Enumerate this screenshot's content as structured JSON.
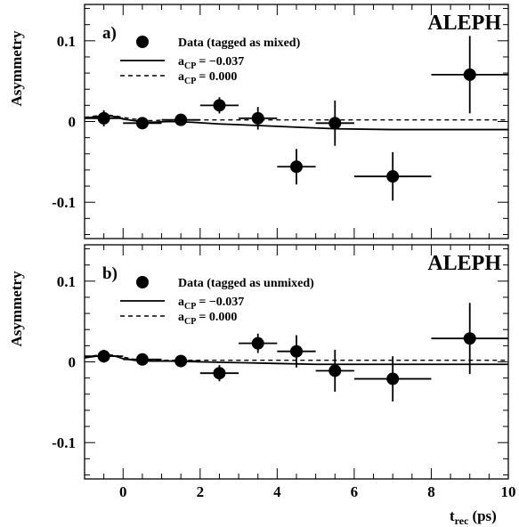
{
  "chart_data": [
    {
      "type": "scatter",
      "panel_label": "a)",
      "experiment": "ALEPH",
      "xlabel": "",
      "ylabel": "Asymmetry",
      "xlim": [
        -1,
        10
      ],
      "ylim": [
        -0.145,
        0.145
      ],
      "x_ticks": [
        "0",
        "2",
        "4",
        "6",
        "8",
        "10"
      ],
      "y_ticks": [
        "0.1",
        "0",
        "-0.1"
      ],
      "legend": [
        {
          "label": "Data (tagged as mixed)",
          "marker": "filled-circle"
        },
        {
          "label_main": "a",
          "label_sub": "CP",
          "label_value": "= −0.037",
          "style": "solid"
        },
        {
          "label_main": "a",
          "label_sub": "CP",
          "label_value": "=   0.000",
          "style": "dashed"
        }
      ],
      "series": [
        {
          "name": "Data (tagged as mixed)",
          "points": [
            {
              "x": -0.5,
              "xerr": 0.5,
              "y": 0.004,
              "yerr": 0.01
            },
            {
              "x": 0.5,
              "xerr": 0.5,
              "y": -0.002,
              "yerr": 0.006
            },
            {
              "x": 1.5,
              "xerr": 0.5,
              "y": 0.002,
              "yerr": 0.007
            },
            {
              "x": 2.5,
              "xerr": 0.5,
              "y": 0.02,
              "yerr": 0.01
            },
            {
              "x": 3.5,
              "xerr": 0.5,
              "y": 0.004,
              "yerr": 0.014
            },
            {
              "x": 4.5,
              "xerr": 0.5,
              "y": -0.056,
              "yerr": 0.022
            },
            {
              "x": 5.5,
              "xerr": 0.5,
              "y": -0.002,
              "yerr": 0.028
            },
            {
              "x": 7.0,
              "xerr": 1.0,
              "y": -0.068,
              "yerr": 0.03
            },
            {
              "x": 9.0,
              "xerr": 1.0,
              "y": 0.058,
              "yerr": 0.048
            }
          ]
        },
        {
          "name": "acp_-0.037",
          "line": "solid",
          "points": [
            [
              -1,
              0.004
            ],
            [
              -0.7,
              0.006
            ],
            [
              -0.4,
              0.007
            ],
            [
              -0.2,
              0.006
            ],
            [
              0,
              0.003
            ],
            [
              0.3,
              0.001
            ],
            [
              0.7,
              -0.001
            ],
            [
              1.2,
              0.0
            ],
            [
              1.8,
              -0.001
            ],
            [
              2.5,
              -0.003
            ],
            [
              3.5,
              -0.005
            ],
            [
              4.5,
              -0.007
            ],
            [
              5.5,
              -0.009
            ],
            [
              7,
              -0.01
            ],
            [
              8.5,
              -0.01
            ],
            [
              10,
              -0.01
            ]
          ]
        },
        {
          "name": "acp_0.000",
          "line": "dashed",
          "points": [
            [
              -1,
              0.005
            ],
            [
              -0.7,
              0.007
            ],
            [
              -0.4,
              0.008
            ],
            [
              -0.2,
              0.007
            ],
            [
              0,
              0.005
            ],
            [
              0.3,
              0.003
            ],
            [
              0.7,
              0.001
            ],
            [
              1.2,
              0.002
            ],
            [
              2,
              0.002
            ],
            [
              4,
              0.002
            ],
            [
              6,
              0.002
            ],
            [
              8,
              0.002
            ],
            [
              10,
              0.002
            ]
          ]
        }
      ]
    },
    {
      "type": "scatter",
      "panel_label": "b)",
      "experiment": "ALEPH",
      "xlabel_main": "t",
      "xlabel_sub": "rec",
      "xlabel_unit": "(ps)",
      "ylabel": "Asymmetry",
      "xlim": [
        -1,
        10
      ],
      "ylim": [
        -0.145,
        0.145
      ],
      "x_ticks": [
        "0",
        "2",
        "4",
        "6",
        "8",
        "10"
      ],
      "y_ticks": [
        "0.1",
        "0",
        "-0.1"
      ],
      "legend": [
        {
          "label": "Data (tagged as unmixed)",
          "marker": "filled-circle"
        },
        {
          "label_main": "a",
          "label_sub": "CP",
          "label_value": "= −0.037",
          "style": "solid"
        },
        {
          "label_main": "a",
          "label_sub": "CP",
          "label_value": "=   0.000",
          "style": "dashed"
        }
      ],
      "series": [
        {
          "name": "Data (tagged as unmixed)",
          "points": [
            {
              "x": -0.5,
              "xerr": 0.5,
              "y": 0.007,
              "yerr": 0.008
            },
            {
              "x": 0.5,
              "xerr": 0.5,
              "y": 0.003,
              "yerr": 0.006
            },
            {
              "x": 1.5,
              "xerr": 0.5,
              "y": 0.001,
              "yerr": 0.006
            },
            {
              "x": 2.5,
              "xerr": 0.5,
              "y": -0.014,
              "yerr": 0.01
            },
            {
              "x": 3.5,
              "xerr": 0.5,
              "y": 0.023,
              "yerr": 0.012
            },
            {
              "x": 4.5,
              "xerr": 0.5,
              "y": 0.013,
              "yerr": 0.02
            },
            {
              "x": 5.5,
              "xerr": 0.5,
              "y": -0.011,
              "yerr": 0.026
            },
            {
              "x": 7.0,
              "xerr": 1.0,
              "y": -0.021,
              "yerr": 0.028
            },
            {
              "x": 9.0,
              "xerr": 1.0,
              "y": 0.029,
              "yerr": 0.044
            }
          ]
        },
        {
          "name": "acp_-0.037",
          "line": "solid",
          "points": [
            [
              -1,
              0.005
            ],
            [
              -0.7,
              0.007
            ],
            [
              -0.4,
              0.008
            ],
            [
              -0.2,
              0.007
            ],
            [
              0,
              0.004
            ],
            [
              0.3,
              0.002
            ],
            [
              0.7,
              0.001
            ],
            [
              1.2,
              0.001
            ],
            [
              2,
              0.0
            ],
            [
              3,
              -0.001
            ],
            [
              4,
              -0.002
            ],
            [
              5,
              -0.003
            ],
            [
              6,
              -0.003
            ],
            [
              8,
              -0.003
            ],
            [
              10,
              -0.003
            ]
          ]
        },
        {
          "name": "acp_0.000",
          "line": "dashed",
          "points": [
            [
              -1,
              0.006
            ],
            [
              -0.7,
              0.008
            ],
            [
              -0.4,
              0.009
            ],
            [
              -0.2,
              0.008
            ],
            [
              0,
              0.006
            ],
            [
              0.3,
              0.003
            ],
            [
              0.7,
              0.002
            ],
            [
              1.2,
              0.002
            ],
            [
              2,
              0.002
            ],
            [
              4,
              0.002
            ],
            [
              6,
              0.002
            ],
            [
              8,
              0.002
            ],
            [
              10,
              0.002
            ]
          ]
        }
      ]
    }
  ]
}
